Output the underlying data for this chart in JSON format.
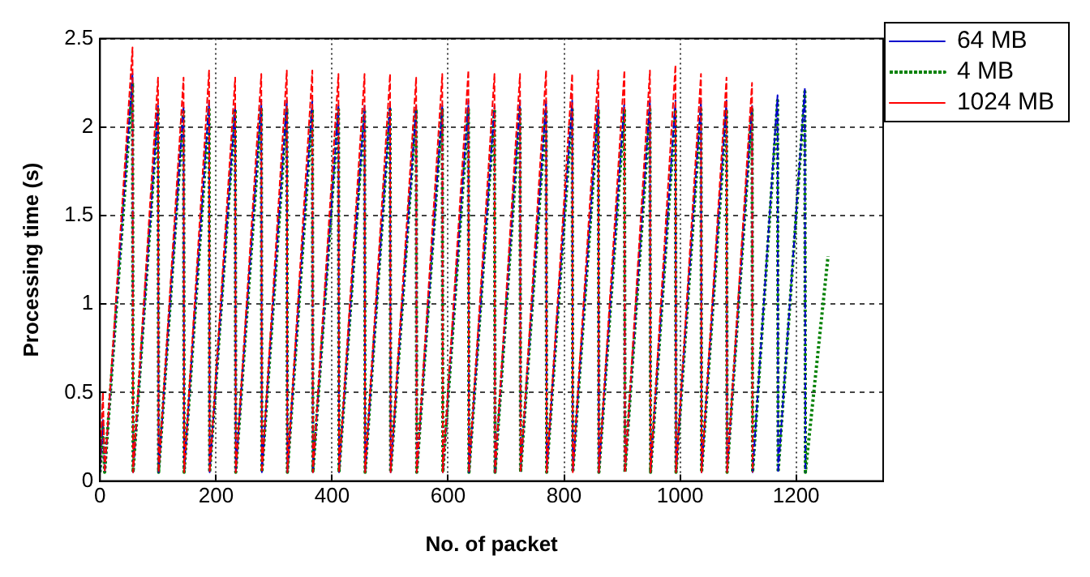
{
  "chart_data": {
    "type": "line",
    "xlabel": "No. of packet",
    "ylabel": "Processing time (s)",
    "xlim": [
      0,
      1350
    ],
    "xticks": [
      0,
      200,
      400,
      600,
      800,
      1000,
      1200
    ],
    "ylim": [
      0,
      2.5
    ],
    "yticks": [
      0,
      0.5,
      1,
      1.5,
      2,
      2.5
    ],
    "grid": true,
    "legend": "top right",
    "marker": "none",
    "series": [
      {
        "name": "64 MB",
        "color": "#0000cc",
        "line_style": "dashed",
        "x": [
          0,
          5,
          8,
          56,
          57,
          100,
          101,
          144,
          145,
          188,
          189,
          233,
          234,
          278,
          279,
          322,
          323,
          366,
          367,
          411,
          412,
          456,
          457,
          500,
          501,
          545,
          546,
          590,
          591,
          635,
          636,
          680,
          681,
          724,
          725,
          769,
          770,
          814,
          815,
          859,
          860,
          904,
          905,
          948,
          949,
          992,
          993,
          1036,
          1037,
          1080,
          1081,
          1124,
          1125,
          1168,
          1169,
          1215,
          1216
        ],
        "values": [
          0.05,
          0.35,
          0.05,
          2.3,
          0.05,
          2.12,
          0.05,
          2.12,
          0.05,
          2.15,
          0.05,
          2.12,
          0.05,
          2.15,
          0.05,
          2.15,
          0.05,
          2.15,
          0.05,
          2.12,
          0.05,
          2.12,
          0.05,
          2.12,
          0.05,
          2.12,
          0.05,
          2.12,
          0.05,
          2.15,
          0.05,
          2.12,
          0.05,
          2.15,
          0.05,
          2.15,
          0.05,
          2.15,
          0.05,
          2.15,
          0.05,
          2.15,
          0.05,
          2.15,
          0.05,
          2.15,
          0.05,
          2.15,
          0.05,
          2.15,
          0.05,
          2.12,
          0.05,
          2.18,
          0.05,
          2.22,
          0.05
        ]
      },
      {
        "name": "4 MB",
        "color": "#008000",
        "line_style": "dotted",
        "x": [
          0,
          5,
          8,
          56,
          57,
          100,
          101,
          144,
          145,
          188,
          189,
          233,
          234,
          278,
          279,
          322,
          323,
          366,
          367,
          411,
          412,
          456,
          457,
          500,
          501,
          545,
          546,
          590,
          591,
          635,
          636,
          680,
          681,
          724,
          725,
          769,
          770,
          814,
          815,
          859,
          860,
          904,
          905,
          948,
          949,
          992,
          993,
          1036,
          1037,
          1080,
          1081,
          1124,
          1125,
          1168,
          1169,
          1215,
          1216,
          1255
        ],
        "values": [
          0.05,
          0.3,
          0.05,
          2.25,
          0.05,
          2.1,
          0.05,
          2.1,
          0.05,
          2.1,
          0.05,
          2.1,
          0.05,
          2.1,
          0.05,
          2.1,
          0.05,
          2.1,
          0.05,
          2.1,
          0.05,
          2.1,
          0.05,
          2.1,
          0.05,
          2.1,
          0.05,
          2.1,
          0.05,
          2.1,
          0.05,
          2.1,
          0.05,
          2.1,
          0.05,
          2.1,
          0.05,
          2.1,
          0.05,
          2.1,
          0.05,
          2.1,
          0.05,
          2.1,
          0.05,
          2.1,
          0.05,
          2.1,
          0.05,
          2.1,
          0.05,
          2.1,
          0.05,
          2.15,
          0.05,
          2.2,
          0.05,
          1.27
        ]
      },
      {
        "name": "1024 MB",
        "color": "#ff0000",
        "line_style": "dashed",
        "x": [
          0,
          5,
          8,
          56,
          57,
          100,
          101,
          144,
          145,
          188,
          189,
          233,
          234,
          278,
          279,
          322,
          323,
          366,
          367,
          411,
          412,
          456,
          457,
          500,
          501,
          545,
          546,
          590,
          591,
          635,
          636,
          680,
          681,
          724,
          725,
          769,
          770,
          814,
          815,
          859,
          860,
          904,
          905,
          948,
          949,
          992,
          993,
          1036,
          1037,
          1080,
          1081,
          1124,
          1125
        ],
        "values": [
          0.1,
          0.5,
          0.05,
          2.45,
          0.05,
          2.28,
          0.05,
          2.28,
          0.05,
          2.32,
          0.05,
          2.28,
          0.05,
          2.3,
          0.05,
          2.32,
          0.05,
          2.32,
          0.05,
          2.3,
          0.05,
          2.3,
          0.05,
          2.3,
          0.05,
          2.28,
          0.05,
          2.3,
          0.05,
          2.32,
          0.05,
          2.3,
          0.05,
          2.3,
          0.05,
          2.32,
          0.05,
          2.3,
          0.05,
          2.32,
          0.05,
          2.32,
          0.05,
          2.32,
          0.05,
          2.35,
          0.05,
          2.3,
          0.05,
          2.28,
          0.05,
          2.25,
          0.05
        ]
      }
    ]
  }
}
